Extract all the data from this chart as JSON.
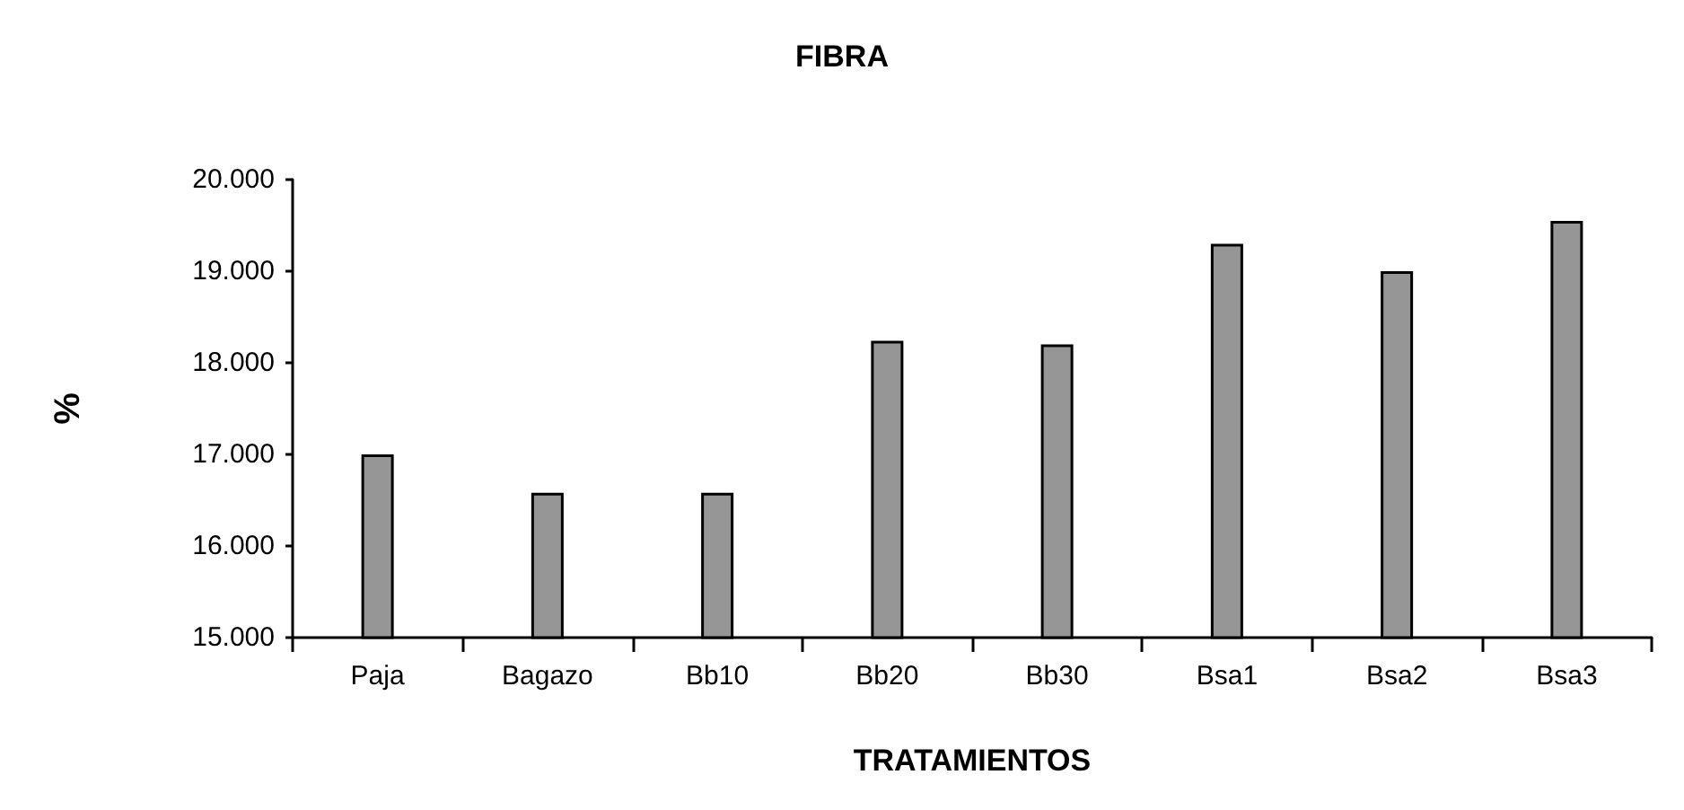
{
  "chart_data": {
    "type": "bar",
    "title": "FIBRA",
    "xlabel": "TRATAMIENTOS",
    "ylabel": "%",
    "categories": [
      "Paja",
      "Bagazo",
      "Bb10",
      "Bb20",
      "Bb30",
      "Bsa1",
      "Bsa2",
      "Bsa3"
    ],
    "values": [
      17.0,
      16.58,
      16.58,
      18.24,
      18.2,
      19.3,
      19.0,
      19.55
    ],
    "color": "#969696",
    "ylim": [
      15,
      20
    ],
    "yticks": [
      {
        "value": 15,
        "label": "15.000"
      },
      {
        "value": 16,
        "label": "16.000"
      },
      {
        "value": 17,
        "label": "17.000"
      },
      {
        "value": 18,
        "label": "18.000"
      },
      {
        "value": 19,
        "label": "19.000"
      },
      {
        "value": 20,
        "label": "20.000"
      }
    ],
    "grid": false
  }
}
